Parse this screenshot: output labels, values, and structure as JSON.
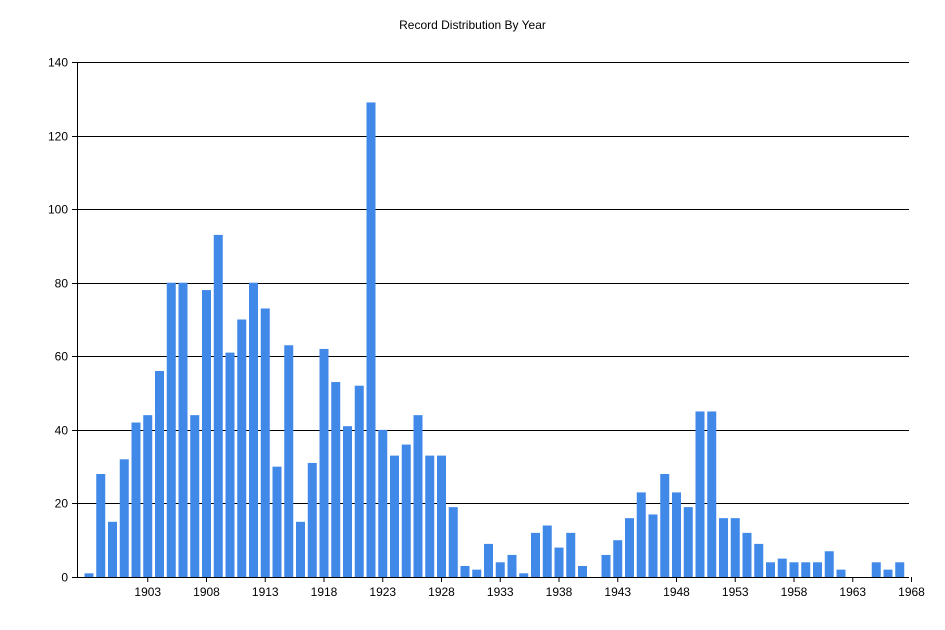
{
  "chart_data": {
    "type": "bar",
    "title": "Record Distribution By Year",
    "xlabel": "",
    "ylabel": "",
    "ylim": [
      0,
      140
    ],
    "yticks": [
      0,
      20,
      40,
      60,
      80,
      100,
      120,
      140
    ],
    "xtick_labels": [
      "1903",
      "1908",
      "1913",
      "1918",
      "1923",
      "1928",
      "1933",
      "1938",
      "1943",
      "1948",
      "1953",
      "1958",
      "1963",
      "1968"
    ],
    "grid": "horizontal",
    "bar_color": "#4189E9",
    "x": [
      1898,
      1899,
      1900,
      1901,
      1902,
      1903,
      1904,
      1905,
      1906,
      1907,
      1908,
      1909,
      1910,
      1911,
      1912,
      1913,
      1914,
      1915,
      1916,
      1917,
      1918,
      1919,
      1920,
      1921,
      1922,
      1923,
      1924,
      1925,
      1926,
      1927,
      1928,
      1929,
      1930,
      1931,
      1932,
      1933,
      1934,
      1935,
      1936,
      1937,
      1938,
      1939,
      1940,
      1941,
      1942,
      1943,
      1944,
      1945,
      1946,
      1947,
      1948,
      1949,
      1950,
      1951,
      1952,
      1953,
      1954,
      1955,
      1956,
      1957,
      1958,
      1959,
      1960,
      1961,
      1962,
      1963,
      1964,
      1965,
      1966,
      1967,
      1968
    ],
    "values": [
      1,
      28,
      15,
      32,
      42,
      44,
      56,
      80,
      80,
      44,
      78,
      93,
      61,
      70,
      80,
      73,
      30,
      63,
      15,
      31,
      62,
      53,
      41,
      52,
      129,
      40,
      33,
      36,
      44,
      33,
      33,
      19,
      3,
      2,
      9,
      4,
      6,
      1,
      12,
      14,
      8,
      12,
      3,
      0,
      6,
      10,
      16,
      23,
      17,
      28,
      23,
      19,
      45,
      45,
      16,
      16,
      12,
      9,
      4,
      5,
      4,
      4,
      4,
      7,
      2,
      0,
      0,
      4,
      2,
      4,
      0
    ]
  }
}
